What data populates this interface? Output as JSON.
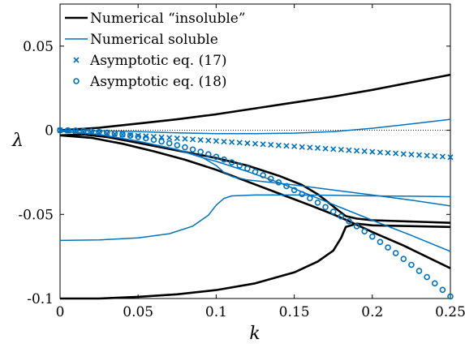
{
  "chart_data": {
    "type": "line",
    "xlabel": "k",
    "ylabel": "λ",
    "xlim": [
      0,
      0.25
    ],
    "ylim": [
      -0.1,
      0.075
    ],
    "xticks": [
      0,
      0.05,
      0.1,
      0.15,
      0.2,
      0.25
    ],
    "xtick_labels": [
      "0",
      "0.05",
      "0.1",
      "0.15",
      "0.2",
      "0.25"
    ],
    "yticks": [
      -0.1,
      -0.05,
      0,
      0.05
    ],
    "ytick_labels": [
      "-0.1",
      "-0.05",
      "0",
      "0.05"
    ],
    "grid": false,
    "legend_placement": "top-left",
    "reference_line": {
      "y": 0,
      "style": "dotted"
    },
    "colors": {
      "black": "#000000",
      "blue": "#0072BD"
    },
    "legend": [
      {
        "label": "Numerical “insoluble”",
        "color": "#000000",
        "marker": "line-thick"
      },
      {
        "label": "Numerical soluble",
        "color": "#0072BD",
        "marker": "line-thin"
      },
      {
        "label": "Asymptotic eq. (17)",
        "color": "#0072BD",
        "marker": "x"
      },
      {
        "label": "Asymptotic eq. (18)",
        "color": "#0072BD",
        "marker": "o"
      }
    ],
    "series": [
      {
        "style": "black",
        "points": [
          [
            0,
            0
          ],
          [
            0.025,
            0.0015
          ],
          [
            0.05,
            0.004
          ],
          [
            0.075,
            0.0065
          ],
          [
            0.1,
            0.0095
          ],
          [
            0.125,
            0.013
          ],
          [
            0.15,
            0.0165
          ],
          [
            0.175,
            0.02
          ],
          [
            0.2,
            0.024
          ],
          [
            0.225,
            0.0285
          ],
          [
            0.25,
            0.033
          ]
        ]
      },
      {
        "style": "black",
        "points": [
          [
            0,
            -0.003
          ],
          [
            0.015,
            -0.0025
          ],
          [
            0.03,
            -0.004
          ],
          [
            0.05,
            -0.0075
          ],
          [
            0.075,
            -0.012
          ],
          [
            0.1,
            -0.0165
          ],
          [
            0.12,
            -0.021
          ],
          [
            0.14,
            -0.027
          ],
          [
            0.155,
            -0.0325
          ],
          [
            0.165,
            -0.038
          ],
          [
            0.172,
            -0.043
          ],
          [
            0.178,
            -0.0475
          ],
          [
            0.183,
            -0.051
          ],
          [
            0.19,
            -0.0525
          ],
          [
            0.2,
            -0.0535
          ],
          [
            0.25,
            -0.055
          ]
        ]
      },
      {
        "style": "black",
        "points": [
          [
            0,
            -0.003
          ],
          [
            0.02,
            -0.0045
          ],
          [
            0.04,
            -0.008
          ],
          [
            0.06,
            -0.0125
          ],
          [
            0.08,
            -0.0175
          ],
          [
            0.1,
            -0.0235
          ],
          [
            0.12,
            -0.0305
          ],
          [
            0.14,
            -0.0375
          ],
          [
            0.16,
            -0.0445
          ],
          [
            0.175,
            -0.05
          ],
          [
            0.185,
            -0.054
          ],
          [
            0.2,
            -0.0605
          ],
          [
            0.22,
            -0.0685
          ],
          [
            0.25,
            -0.082
          ]
        ]
      },
      {
        "style": "black",
        "points": [
          [
            0,
            -0.1
          ],
          [
            0.025,
            -0.1
          ],
          [
            0.05,
            -0.099
          ],
          [
            0.075,
            -0.0975
          ],
          [
            0.1,
            -0.095
          ],
          [
            0.125,
            -0.091
          ],
          [
            0.15,
            -0.0845
          ],
          [
            0.165,
            -0.078
          ],
          [
            0.175,
            -0.0715
          ],
          [
            0.18,
            -0.064
          ],
          [
            0.183,
            -0.0575
          ],
          [
            0.19,
            -0.0555
          ],
          [
            0.2,
            -0.0565
          ],
          [
            0.25,
            -0.0575
          ]
        ]
      },
      {
        "style": "blue",
        "points": [
          [
            0,
            0
          ],
          [
            0.025,
            -0.0003
          ],
          [
            0.05,
            -0.0008
          ],
          [
            0.075,
            -0.0015
          ],
          [
            0.1,
            -0.002
          ],
          [
            0.125,
            -0.002
          ],
          [
            0.15,
            -0.0017
          ],
          [
            0.175,
            -0.0008
          ],
          [
            0.2,
            0.0012
          ],
          [
            0.225,
            0.0038
          ],
          [
            0.25,
            0.0065
          ]
        ]
      },
      {
        "style": "blue",
        "points": [
          [
            0,
            -0.0005
          ],
          [
            0.025,
            -0.0025
          ],
          [
            0.05,
            -0.0065
          ],
          [
            0.075,
            -0.0115
          ],
          [
            0.09,
            -0.0155
          ],
          [
            0.1,
            -0.021
          ],
          [
            0.105,
            -0.025
          ],
          [
            0.11,
            -0.0275
          ],
          [
            0.12,
            -0.0295
          ],
          [
            0.15,
            -0.0325
          ],
          [
            0.175,
            -0.0355
          ],
          [
            0.2,
            -0.0385
          ],
          [
            0.225,
            -0.0415
          ],
          [
            0.25,
            -0.045
          ]
        ]
      },
      {
        "style": "blue",
        "points": [
          [
            0,
            -0.0005
          ],
          [
            0.025,
            -0.0025
          ],
          [
            0.05,
            -0.0065
          ],
          [
            0.075,
            -0.0115
          ],
          [
            0.085,
            -0.0145
          ],
          [
            0.092,
            -0.0165
          ],
          [
            0.1,
            -0.0185
          ],
          [
            0.12,
            -0.0245
          ],
          [
            0.14,
            -0.031
          ],
          [
            0.16,
            -0.0385
          ],
          [
            0.18,
            -0.046
          ],
          [
            0.2,
            -0.0535
          ],
          [
            0.225,
            -0.0625
          ],
          [
            0.25,
            -0.072
          ]
        ]
      },
      {
        "style": "blue",
        "points": [
          [
            0,
            -0.0655
          ],
          [
            0.025,
            -0.0652
          ],
          [
            0.05,
            -0.064
          ],
          [
            0.07,
            -0.0615
          ],
          [
            0.085,
            -0.057
          ],
          [
            0.095,
            -0.0505
          ],
          [
            0.1,
            -0.0445
          ],
          [
            0.105,
            -0.0405
          ],
          [
            0.11,
            -0.039
          ],
          [
            0.125,
            -0.0385
          ],
          [
            0.15,
            -0.0385
          ],
          [
            0.175,
            -0.0387
          ],
          [
            0.2,
            -0.039
          ],
          [
            0.225,
            -0.0392
          ],
          [
            0.25,
            -0.0395
          ]
        ]
      }
    ],
    "markers": [
      {
        "shape": "x",
        "slope": -0.064
      },
      {
        "shape": "o",
        "curvature": -1.58
      }
    ]
  }
}
